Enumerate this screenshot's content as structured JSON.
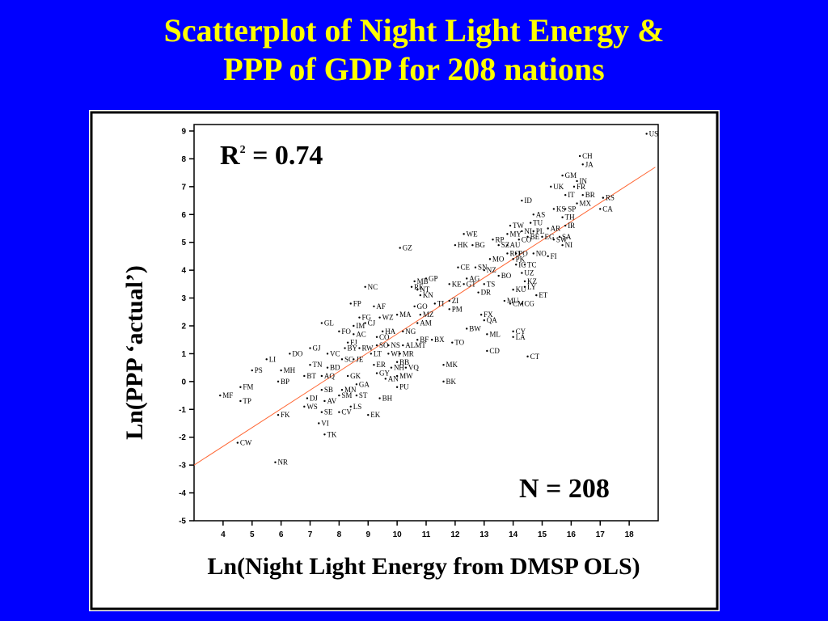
{
  "title_line1": "Scatterplot of Night Light Energy &",
  "title_line2": "PPP of GDP for 208 nations",
  "annotations": {
    "r2_prefix": "R",
    "r2_sup": "2",
    "r2_value": " = 0.74",
    "n_text": "N = 208"
  },
  "colors": {
    "background": "#0000ff",
    "title": "#ffff00",
    "panel": "#ffffff",
    "fit_line": "#ff6633",
    "points": "#000000"
  },
  "chart_data": {
    "type": "scatter",
    "title": "Scatterplot of Night Light Energy & PPP of GDP for 208 nations",
    "xlabel": "Ln(Night Light Energy from DMSP OLS)",
    "ylabel": "Ln(PPP ‘actual’)",
    "xlim": [
      3,
      19
    ],
    "ylim": [
      -5,
      9
    ],
    "xticks": [
      4,
      5,
      6,
      7,
      8,
      9,
      10,
      11,
      12,
      13,
      14,
      15,
      16,
      17,
      18
    ],
    "yticks": [
      9,
      8,
      7,
      6,
      5,
      4,
      3,
      2,
      1,
      0,
      -1,
      -2,
      -3,
      -4,
      -5
    ],
    "grid": false,
    "r_squared": 0.74,
    "n": 208,
    "fit_line": {
      "x": [
        3,
        18.9
      ],
      "y": [
        -3.0,
        7.7
      ]
    },
    "points": [
      {
        "label": "US",
        "x": 18.6,
        "y": 8.9
      },
      {
        "label": "CH",
        "x": 16.3,
        "y": 8.1
      },
      {
        "label": "JA",
        "x": 16.4,
        "y": 7.8
      },
      {
        "label": "GM",
        "x": 15.7,
        "y": 7.4
      },
      {
        "label": "IN",
        "x": 16.2,
        "y": 7.2
      },
      {
        "label": "UK",
        "x": 15.3,
        "y": 7.0
      },
      {
        "label": "FR",
        "x": 16.1,
        "y": 7.0
      },
      {
        "label": "IT",
        "x": 15.8,
        "y": 6.7
      },
      {
        "label": "BR",
        "x": 16.4,
        "y": 6.7
      },
      {
        "label": "RS",
        "x": 17.1,
        "y": 6.6
      },
      {
        "label": "MX",
        "x": 16.2,
        "y": 6.4
      },
      {
        "label": "CA",
        "x": 17.0,
        "y": 6.2
      },
      {
        "label": "ID",
        "x": 14.3,
        "y": 6.5
      },
      {
        "label": "KS",
        "x": 15.4,
        "y": 6.2
      },
      {
        "label": "SP",
        "x": 15.8,
        "y": 6.2
      },
      {
        "label": "AS",
        "x": 14.7,
        "y": 6.0
      },
      {
        "label": "TH",
        "x": 15.7,
        "y": 5.9
      },
      {
        "label": "TU",
        "x": 14.6,
        "y": 5.7
      },
      {
        "label": "TW",
        "x": 13.9,
        "y": 5.6
      },
      {
        "label": "IR",
        "x": 15.8,
        "y": 5.6
      },
      {
        "label": "AR",
        "x": 15.2,
        "y": 5.5
      },
      {
        "label": "NL",
        "x": 14.3,
        "y": 5.4
      },
      {
        "label": "PL",
        "x": 14.7,
        "y": 5.4
      },
      {
        "label": "MY",
        "x": 13.8,
        "y": 5.3
      },
      {
        "label": "BE",
        "x": 14.5,
        "y": 5.2
      },
      {
        "label": "EG",
        "x": 15.0,
        "y": 5.2
      },
      {
        "label": "SA",
        "x": 15.6,
        "y": 5.2
      },
      {
        "label": "SW",
        "x": 15.4,
        "y": 5.1
      },
      {
        "label": "RP",
        "x": 13.3,
        "y": 5.1
      },
      {
        "label": "CO",
        "x": 14.2,
        "y": 5.1
      },
      {
        "label": "WE",
        "x": 12.3,
        "y": 5.3
      },
      {
        "label": "HK",
        "x": 12.0,
        "y": 4.9
      },
      {
        "label": "BG",
        "x": 12.6,
        "y": 4.9
      },
      {
        "label": "AU",
        "x": 13.8,
        "y": 4.9
      },
      {
        "label": "SZ",
        "x": 13.5,
        "y": 4.9
      },
      {
        "label": "NI",
        "x": 15.7,
        "y": 4.9
      },
      {
        "label": "RO",
        "x": 13.8,
        "y": 4.6
      },
      {
        "label": "PO",
        "x": 14.1,
        "y": 4.6
      },
      {
        "label": "MO",
        "x": 13.2,
        "y": 4.4
      },
      {
        "label": "PK",
        "x": 14.0,
        "y": 4.4
      },
      {
        "label": "NO",
        "x": 14.7,
        "y": 4.6
      },
      {
        "label": "FI",
        "x": 15.2,
        "y": 4.5
      },
      {
        "label": "GZ",
        "x": 10.1,
        "y": 4.8
      },
      {
        "label": "CE",
        "x": 12.1,
        "y": 4.1
      },
      {
        "label": "SN",
        "x": 12.7,
        "y": 4.1
      },
      {
        "label": "NZ",
        "x": 13.0,
        "y": 4.0
      },
      {
        "label": "IC",
        "x": 14.1,
        "y": 4.2
      },
      {
        "label": "TC",
        "x": 14.4,
        "y": 4.2
      },
      {
        "label": "UZ",
        "x": 14.3,
        "y": 3.9
      },
      {
        "label": "AG",
        "x": 12.4,
        "y": 3.7
      },
      {
        "label": "BO",
        "x": 13.5,
        "y": 3.8
      },
      {
        "label": "KZ",
        "x": 14.4,
        "y": 3.6
      },
      {
        "label": "MB",
        "x": 10.6,
        "y": 3.6
      },
      {
        "label": "GP",
        "x": 11.0,
        "y": 3.7
      },
      {
        "label": "KE",
        "x": 11.8,
        "y": 3.5
      },
      {
        "label": "GT",
        "x": 12.3,
        "y": 3.5
      },
      {
        "label": "TS",
        "x": 13.0,
        "y": 3.5
      },
      {
        "label": "RE",
        "x": 10.5,
        "y": 3.4
      },
      {
        "label": "LY",
        "x": 14.4,
        "y": 3.4
      },
      {
        "label": "KU",
        "x": 14.0,
        "y": 3.3
      },
      {
        "label": "NC",
        "x": 8.9,
        "y": 3.4
      },
      {
        "label": "NT",
        "x": 10.7,
        "y": 3.3
      },
      {
        "label": "KN",
        "x": 10.8,
        "y": 3.1
      },
      {
        "label": "DR",
        "x": 12.8,
        "y": 3.2
      },
      {
        "label": "ET",
        "x": 14.8,
        "y": 3.1
      },
      {
        "label": "MU",
        "x": 13.7,
        "y": 2.9
      },
      {
        "label": "CM",
        "x": 13.9,
        "y": 2.8
      },
      {
        "label": "CG",
        "x": 14.3,
        "y": 2.8
      },
      {
        "label": "ZI",
        "x": 11.8,
        "y": 2.9
      },
      {
        "label": "TI",
        "x": 11.3,
        "y": 2.8
      },
      {
        "label": "GO",
        "x": 10.6,
        "y": 2.7
      },
      {
        "label": "AF",
        "x": 9.2,
        "y": 2.7
      },
      {
        "label": "FP",
        "x": 8.4,
        "y": 2.8
      },
      {
        "label": "PM",
        "x": 11.8,
        "y": 2.6
      },
      {
        "label": "MA",
        "x": 10.0,
        "y": 2.4
      },
      {
        "label": "MZ",
        "x": 10.8,
        "y": 2.4
      },
      {
        "label": "FX",
        "x": 12.9,
        "y": 2.4
      },
      {
        "label": "QA",
        "x": 13.0,
        "y": 2.2
      },
      {
        "label": "FG",
        "x": 8.7,
        "y": 2.3
      },
      {
        "label": "WZ",
        "x": 9.4,
        "y": 2.3
      },
      {
        "label": "CJ",
        "x": 8.9,
        "y": 2.1
      },
      {
        "label": "IM",
        "x": 8.5,
        "y": 2.0
      },
      {
        "label": "AM",
        "x": 10.7,
        "y": 2.1
      },
      {
        "label": "GL",
        "x": 7.4,
        "y": 2.1
      },
      {
        "label": "BW",
        "x": 12.4,
        "y": 1.9
      },
      {
        "label": "HA",
        "x": 9.5,
        "y": 1.8
      },
      {
        "label": "NG",
        "x": 10.2,
        "y": 1.8
      },
      {
        "label": "FO",
        "x": 8.0,
        "y": 1.8
      },
      {
        "label": "AC",
        "x": 8.5,
        "y": 1.7
      },
      {
        "label": "CO",
        "x": 9.3,
        "y": 1.6
      },
      {
        "label": "BF",
        "x": 10.7,
        "y": 1.5
      },
      {
        "label": "BX",
        "x": 11.2,
        "y": 1.5
      },
      {
        "label": "ML",
        "x": 13.1,
        "y": 1.7
      },
      {
        "label": "CY",
        "x": 14.0,
        "y": 1.8
      },
      {
        "label": "LA",
        "x": 14.0,
        "y": 1.6
      },
      {
        "label": "TO",
        "x": 11.9,
        "y": 1.4
      },
      {
        "label": "FJ",
        "x": 8.3,
        "y": 1.4
      },
      {
        "label": "SO",
        "x": 9.3,
        "y": 1.3
      },
      {
        "label": "NS",
        "x": 9.7,
        "y": 1.3
      },
      {
        "label": "ALMT",
        "x": 10.2,
        "y": 1.3
      },
      {
        "label": "BY",
        "x": 8.2,
        "y": 1.2
      },
      {
        "label": "RW",
        "x": 8.7,
        "y": 1.2
      },
      {
        "label": "GJ",
        "x": 7.0,
        "y": 1.2
      },
      {
        "label": "DO",
        "x": 6.3,
        "y": 1.0
      },
      {
        "label": "LT",
        "x": 9.1,
        "y": 1.0
      },
      {
        "label": "WI",
        "x": 9.7,
        "y": 1.0
      },
      {
        "label": "MR",
        "x": 10.1,
        "y": 1.0
      },
      {
        "label": "CD",
        "x": 13.1,
        "y": 1.1
      },
      {
        "label": "VC",
        "x": 7.6,
        "y": 1.0
      },
      {
        "label": "CT",
        "x": 14.5,
        "y": 0.9
      },
      {
        "label": "LI",
        "x": 5.5,
        "y": 0.8
      },
      {
        "label": "SC",
        "x": 8.1,
        "y": 0.8
      },
      {
        "label": "JE",
        "x": 8.5,
        "y": 0.8
      },
      {
        "label": "BB",
        "x": 10.0,
        "y": 0.7
      },
      {
        "label": "ER",
        "x": 9.2,
        "y": 0.6
      },
      {
        "label": "TN",
        "x": 7.0,
        "y": 0.6
      },
      {
        "label": "MK",
        "x": 11.6,
        "y": 0.6
      },
      {
        "label": "NH",
        "x": 9.8,
        "y": 0.5
      },
      {
        "label": "VQ",
        "x": 10.3,
        "y": 0.5
      },
      {
        "label": "PS",
        "x": 5.0,
        "y": 0.4
      },
      {
        "label": "MH",
        "x": 6.0,
        "y": 0.4
      },
      {
        "label": "BD",
        "x": 7.6,
        "y": 0.5
      },
      {
        "label": "GY",
        "x": 9.3,
        "y": 0.3
      },
      {
        "label": "BT",
        "x": 6.8,
        "y": 0.2
      },
      {
        "label": "AQ",
        "x": 7.4,
        "y": 0.2
      },
      {
        "label": "GK",
        "x": 8.3,
        "y": 0.2
      },
      {
        "label": "MW",
        "x": 10.0,
        "y": 0.2
      },
      {
        "label": "AN",
        "x": 9.6,
        "y": 0.1
      },
      {
        "label": "BK",
        "x": 11.6,
        "y": 0.0
      },
      {
        "label": "BP",
        "x": 5.9,
        "y": 0.0
      },
      {
        "label": "GA",
        "x": 8.6,
        "y": -0.1
      },
      {
        "label": "PU",
        "x": 10.0,
        "y": -0.2
      },
      {
        "label": "FM",
        "x": 4.6,
        "y": -0.2
      },
      {
        "label": "SB",
        "x": 7.4,
        "y": -0.3
      },
      {
        "label": "MN",
        "x": 8.1,
        "y": -0.3
      },
      {
        "label": "ST",
        "x": 8.6,
        "y": -0.5
      },
      {
        "label": "SM",
        "x": 8.0,
        "y": -0.5
      },
      {
        "label": "BH",
        "x": 9.4,
        "y": -0.6
      },
      {
        "label": "MF",
        "x": 3.9,
        "y": -0.5
      },
      {
        "label": "TP",
        "x": 4.6,
        "y": -0.7
      },
      {
        "label": "DJ",
        "x": 6.9,
        "y": -0.6
      },
      {
        "label": "AV",
        "x": 7.5,
        "y": -0.7
      },
      {
        "label": "WS",
        "x": 6.8,
        "y": -0.9
      },
      {
        "label": "LS",
        "x": 8.4,
        "y": -0.9
      },
      {
        "label": "SE",
        "x": 7.4,
        "y": -1.1
      },
      {
        "label": "CV",
        "x": 8.0,
        "y": -1.1
      },
      {
        "label": "FK",
        "x": 5.9,
        "y": -1.2
      },
      {
        "label": "EK",
        "x": 9.0,
        "y": -1.2
      },
      {
        "label": "VI",
        "x": 7.3,
        "y": -1.5
      },
      {
        "label": "TK",
        "x": 7.5,
        "y": -1.9
      },
      {
        "label": "CW",
        "x": 4.5,
        "y": -2.2
      },
      {
        "label": "NR",
        "x": 5.8,
        "y": -2.9
      }
    ]
  }
}
